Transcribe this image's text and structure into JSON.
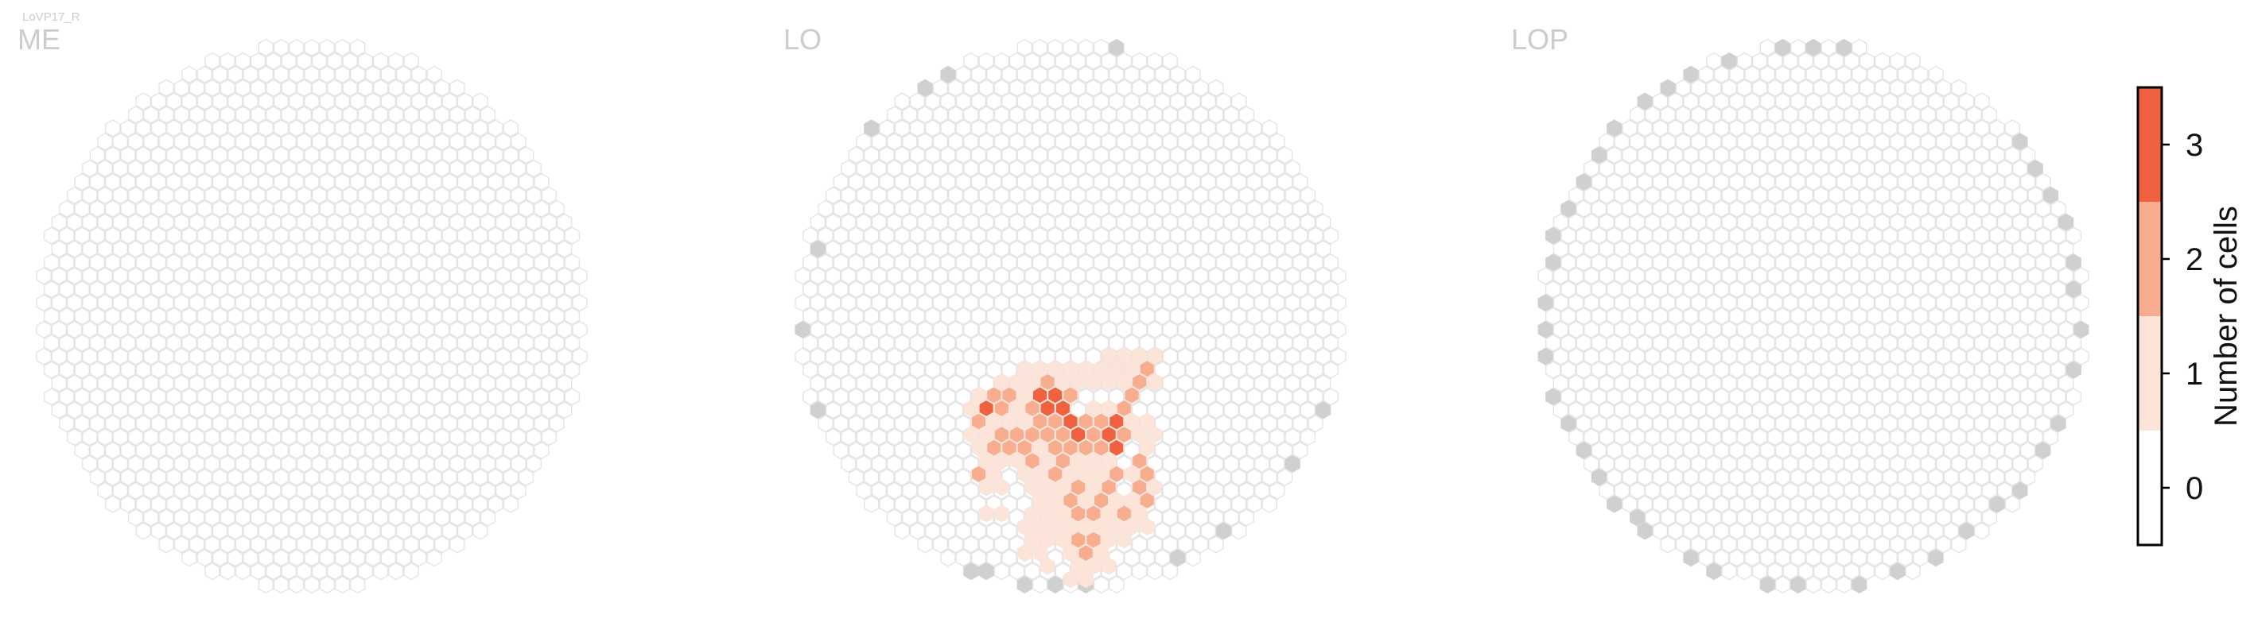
{
  "figure": {
    "cell_type": "LoVP17_R"
  },
  "chart_data": {
    "type": "heatmap",
    "panels": [
      {
        "title": "ME",
        "hex_radius": 11,
        "outline_color": "#e6e6e6",
        "counts": []
      },
      {
        "title": "LO",
        "hex_radius": 11,
        "outline_color": "#e6e6e6",
        "counts": [
          {
            "row": 21,
            "col": -12,
            "v": 2
          },
          {
            "row": 21,
            "col": -10,
            "v": 1
          },
          {
            "row": 21,
            "col": -8,
            "v": 1
          },
          {
            "row": 20,
            "col": -11,
            "v": 3
          },
          {
            "row": 20,
            "col": -9,
            "v": 2
          },
          {
            "row": 20,
            "col": -7,
            "v": 1
          },
          {
            "row": 19,
            "col": -10,
            "v": 2
          },
          {
            "row": 19,
            "col": -8,
            "v": 2
          },
          {
            "row": 19,
            "col": -6,
            "v": 1
          },
          {
            "row": 20,
            "col": -5,
            "v": 2
          },
          {
            "row": 20,
            "col": -3,
            "v": 3
          },
          {
            "row": 20,
            "col": -1,
            "v": 3
          },
          {
            "row": 19,
            "col": -4,
            "v": 3
          },
          {
            "row": 19,
            "col": -2,
            "v": 3
          },
          {
            "row": 19,
            "col": 0,
            "v": 2
          },
          {
            "row": 21,
            "col": -4,
            "v": 2
          },
          {
            "row": 21,
            "col": -2,
            "v": 2
          },
          {
            "row": 21,
            "col": 0,
            "v": 3
          },
          {
            "row": 22,
            "col": -3,
            "v": 2
          },
          {
            "row": 22,
            "col": -1,
            "v": 2
          },
          {
            "row": 22,
            "col": 1,
            "v": 3
          },
          {
            "row": 21,
            "col": 2,
            "v": 2
          },
          {
            "row": 21,
            "col": 4,
            "v": 2
          },
          {
            "row": 21,
            "col": 6,
            "v": 3
          },
          {
            "row": 22,
            "col": 5,
            "v": 3
          },
          {
            "row": 22,
            "col": 7,
            "v": 2
          },
          {
            "row": 23,
            "col": 6,
            "v": 3
          },
          {
            "row": 23,
            "col": 4,
            "v": 2
          },
          {
            "row": 20,
            "col": 7,
            "v": 2
          },
          {
            "row": 19,
            "col": 8,
            "v": 2
          },
          {
            "row": 20,
            "col": 3,
            "v": 1
          },
          {
            "row": 20,
            "col": 5,
            "v": 1
          },
          {
            "row": 18,
            "col": 7,
            "v": 1
          },
          {
            "row": 18,
            "col": 9,
            "v": 2
          },
          {
            "row": 17,
            "col": 10,
            "v": 2
          },
          {
            "row": 17,
            "col": 8,
            "v": 1
          },
          {
            "row": 18,
            "col": -9,
            "v": 1
          },
          {
            "row": 18,
            "col": -7,
            "v": 1
          },
          {
            "row": 18,
            "col": -5,
            "v": 1
          },
          {
            "row": 18,
            "col": -3,
            "v": 2
          },
          {
            "row": 18,
            "col": -1,
            "v": 1
          },
          {
            "row": 18,
            "col": 1,
            "v": 1
          },
          {
            "row": 18,
            "col": 3,
            "v": 1
          },
          {
            "row": 18,
            "col": 5,
            "v": 1
          },
          {
            "row": 17,
            "col": -6,
            "v": 1
          },
          {
            "row": 17,
            "col": -4,
            "v": 1
          },
          {
            "row": 17,
            "col": -2,
            "v": 1
          },
          {
            "row": 17,
            "col": 0,
            "v": 1
          },
          {
            "row": 17,
            "col": 2,
            "v": 1
          },
          {
            "row": 17,
            "col": 4,
            "v": 1
          },
          {
            "row": 17,
            "col": 6,
            "v": 1
          },
          {
            "row": 16,
            "col": 5,
            "v": 1
          },
          {
            "row": 16,
            "col": 7,
            "v": 1
          },
          {
            "row": 16,
            "col": 9,
            "v": 1
          },
          {
            "row": 16,
            "col": 11,
            "v": 1
          },
          {
            "row": 18,
            "col": 11,
            "v": 1
          },
          {
            "row": 19,
            "col": -12,
            "v": 1
          },
          {
            "row": 20,
            "col": -13,
            "v": 1
          },
          {
            "row": 22,
            "col": -13,
            "v": 1
          },
          {
            "row": 22,
            "col": -11,
            "v": 1
          },
          {
            "row": 22,
            "col": -9,
            "v": 2
          },
          {
            "row": 22,
            "col": -7,
            "v": 2
          },
          {
            "row": 22,
            "col": -5,
            "v": 2
          },
          {
            "row": 21,
            "col": -6,
            "v": 1
          },
          {
            "row": 23,
            "col": -12,
            "v": 1
          },
          {
            "row": 23,
            "col": -10,
            "v": 2
          },
          {
            "row": 23,
            "col": -8,
            "v": 2
          },
          {
            "row": 23,
            "col": -6,
            "v": 2
          },
          {
            "row": 23,
            "col": -4,
            "v": 1
          },
          {
            "row": 23,
            "col": -2,
            "v": 2
          },
          {
            "row": 23,
            "col": 0,
            "v": 2
          },
          {
            "row": 23,
            "col": 2,
            "v": 2
          },
          {
            "row": 22,
            "col": 3,
            "v": 2
          },
          {
            "row": 22,
            "col": 9,
            "v": 1
          },
          {
            "row": 21,
            "col": 8,
            "v": 1
          },
          {
            "row": 21,
            "col": 10,
            "v": 1
          },
          {
            "row": 22,
            "col": 11,
            "v": 1
          },
          {
            "row": 23,
            "col": 10,
            "v": 1
          },
          {
            "row": 24,
            "col": -11,
            "v": 1
          },
          {
            "row": 24,
            "col": -9,
            "v": 1
          },
          {
            "row": 24,
            "col": -7,
            "v": 1
          },
          {
            "row": 24,
            "col": -5,
            "v": 2
          },
          {
            "row": 24,
            "col": -3,
            "v": 1
          },
          {
            "row": 24,
            "col": -1,
            "v": 2
          },
          {
            "row": 24,
            "col": 1,
            "v": 1
          },
          {
            "row": 24,
            "col": 3,
            "v": 1
          },
          {
            "row": 24,
            "col": 5,
            "v": 1
          },
          {
            "row": 25,
            "col": -12,
            "v": 2
          },
          {
            "row": 25,
            "col": -10,
            "v": 1
          },
          {
            "row": 25,
            "col": -6,
            "v": 1
          },
          {
            "row": 25,
            "col": -4,
            "v": 1
          },
          {
            "row": 25,
            "col": -2,
            "v": 2
          },
          {
            "row": 25,
            "col": 0,
            "v": 1
          },
          {
            "row": 25,
            "col": 2,
            "v": 1
          },
          {
            "row": 25,
            "col": 4,
            "v": 1
          },
          {
            "row": 25,
            "col": 6,
            "v": 2
          },
          {
            "row": 25,
            "col": 8,
            "v": 1
          },
          {
            "row": 25,
            "col": 10,
            "v": 2
          },
          {
            "row": 24,
            "col": 9,
            "v": 2
          },
          {
            "row": 26,
            "col": 9,
            "v": 2
          },
          {
            "row": 26,
            "col": 11,
            "v": 1
          },
          {
            "row": 27,
            "col": 10,
            "v": 2
          },
          {
            "row": 27,
            "col": 8,
            "v": 1
          },
          {
            "row": 26,
            "col": -11,
            "v": 1
          },
          {
            "row": 26,
            "col": -9,
            "v": 1
          },
          {
            "row": 26,
            "col": -5,
            "v": 1
          },
          {
            "row": 26,
            "col": -3,
            "v": 1
          },
          {
            "row": 26,
            "col": -1,
            "v": 1
          },
          {
            "row": 26,
            "col": 1,
            "v": 2
          },
          {
            "row": 26,
            "col": 3,
            "v": 1
          },
          {
            "row": 26,
            "col": 5,
            "v": 2
          },
          {
            "row": 27,
            "col": -4,
            "v": 1
          },
          {
            "row": 27,
            "col": -2,
            "v": 1
          },
          {
            "row": 27,
            "col": 0,
            "v": 2
          },
          {
            "row": 27,
            "col": 2,
            "v": 1
          },
          {
            "row": 27,
            "col": 4,
            "v": 2
          },
          {
            "row": 27,
            "col": 6,
            "v": 1
          },
          {
            "row": 28,
            "col": -11,
            "v": 1
          },
          {
            "row": 28,
            "col": -9,
            "v": 1
          },
          {
            "row": 28,
            "col": -5,
            "v": 1
          },
          {
            "row": 28,
            "col": -3,
            "v": 1
          },
          {
            "row": 28,
            "col": -1,
            "v": 1
          },
          {
            "row": 28,
            "col": 1,
            "v": 2
          },
          {
            "row": 28,
            "col": 3,
            "v": 2
          },
          {
            "row": 28,
            "col": 5,
            "v": 1
          },
          {
            "row": 28,
            "col": 7,
            "v": 2
          },
          {
            "row": 28,
            "col": 9,
            "v": 1
          },
          {
            "row": 29,
            "col": -6,
            "v": 1
          },
          {
            "row": 29,
            "col": -4,
            "v": 1
          },
          {
            "row": 29,
            "col": -2,
            "v": 1
          },
          {
            "row": 29,
            "col": 0,
            "v": 1
          },
          {
            "row": 29,
            "col": 2,
            "v": 1
          },
          {
            "row": 29,
            "col": 4,
            "v": 1
          },
          {
            "row": 29,
            "col": 6,
            "v": 1
          },
          {
            "row": 29,
            "col": 8,
            "v": 1
          },
          {
            "row": 29,
            "col": 10,
            "v": 1
          },
          {
            "row": 30,
            "col": -5,
            "v": 1
          },
          {
            "row": 30,
            "col": -3,
            "v": 1
          },
          {
            "row": 30,
            "col": -1,
            "v": 1
          },
          {
            "row": 30,
            "col": 1,
            "v": 2
          },
          {
            "row": 30,
            "col": 3,
            "v": 2
          },
          {
            "row": 30,
            "col": 5,
            "v": 1
          },
          {
            "row": 30,
            "col": 7,
            "v": 1
          },
          {
            "row": 31,
            "col": -6,
            "v": 1
          },
          {
            "row": 31,
            "col": -4,
            "v": 1
          },
          {
            "row": 31,
            "col": 0,
            "v": 1
          },
          {
            "row": 31,
            "col": 2,
            "v": 2
          },
          {
            "row": 31,
            "col": 4,
            "v": 1
          },
          {
            "row": 32,
            "col": -3,
            "v": 1
          },
          {
            "row": 32,
            "col": 1,
            "v": 1
          },
          {
            "row": 32,
            "col": 3,
            "v": 1
          },
          {
            "row": 32,
            "col": 5,
            "v": 1
          },
          {
            "row": 33,
            "col": 0,
            "v": 1
          },
          {
            "row": 33,
            "col": 2,
            "v": 1
          }
        ]
      },
      {
        "title": "LOP",
        "hex_radius": 11,
        "outline_color": "#e6e6e6",
        "counts": []
      }
    ],
    "colorbar": {
      "label": "Number of cells",
      "ticks": [
        "0",
        "1",
        "2",
        "3"
      ],
      "colors": [
        "#ffffff",
        "#fde4d9",
        "#f9ad8f",
        "#f0613f"
      ]
    },
    "colors": {
      "outline": "#e3e3e3",
      "missing_fill": "#d0d0d0",
      "panel_title": "#cccccc"
    }
  }
}
